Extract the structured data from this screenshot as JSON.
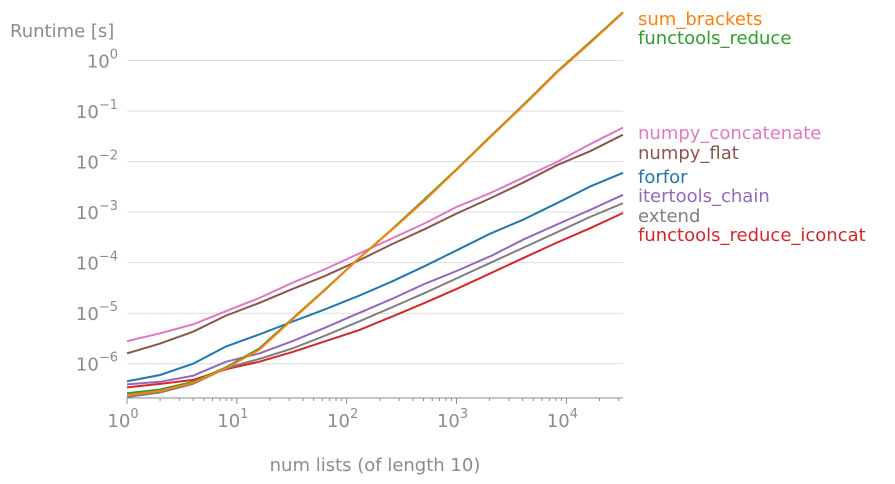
{
  "chart_data": {
    "type": "line",
    "title": "",
    "xlabel": "num lists (of length 10)",
    "ylabel": "Runtime [s]",
    "xscale": "log",
    "yscale": "log",
    "xlim": [
      1,
      32768
    ],
    "ylim": [
      2.1e-07,
      10
    ],
    "grid": "horizontal",
    "legend_placement": "right, at line ends",
    "x": [
      1,
      2,
      4,
      8,
      16,
      32,
      64,
      128,
      256,
      512,
      1024,
      2048,
      4096,
      8192,
      16384,
      32768
    ],
    "xticks": [
      {
        "value": 1,
        "base": "10",
        "exp": "0"
      },
      {
        "value": 10,
        "base": "10",
        "exp": "1"
      },
      {
        "value": 100,
        "base": "10",
        "exp": "2"
      },
      {
        "value": 1000,
        "base": "10",
        "exp": "3"
      },
      {
        "value": 10000,
        "base": "10",
        "exp": "4"
      }
    ],
    "yticks": [
      {
        "value": 1e-06,
        "base": "10",
        "exp": "−6"
      },
      {
        "value": 1e-05,
        "base": "10",
        "exp": "−5"
      },
      {
        "value": 0.0001,
        "base": "10",
        "exp": "−4"
      },
      {
        "value": 0.001,
        "base": "10",
        "exp": "−3"
      },
      {
        "value": 0.01,
        "base": "10",
        "exp": "−2"
      },
      {
        "value": 0.1,
        "base": "10",
        "exp": "−1"
      },
      {
        "value": 1,
        "base": "10",
        "exp": "0"
      }
    ],
    "series": [
      {
        "name": "sum_brackets",
        "color": "#ff7f0e",
        "values": [
          2.4e-07,
          2.9e-07,
          4.2e-07,
          8.2e-07,
          1.9e-06,
          7.5e-06,
          2.9e-05,
          0.00012,
          0.00044,
          0.0017,
          0.0072,
          0.031,
          0.13,
          0.58,
          2.2,
          8.8
        ]
      },
      {
        "name": "functools_reduce",
        "color": "#2ca02c",
        "values": [
          2.6e-07,
          3.1e-07,
          4.4e-07,
          8.5e-07,
          2e-06,
          7.8e-06,
          3e-05,
          0.00012,
          0.00045,
          0.0018,
          0.0074,
          0.032,
          0.135,
          0.6,
          2.3,
          9.0
        ]
      },
      {
        "name": "numpy_concatenate",
        "color": "#e377c2",
        "values": [
          2.8e-06,
          4e-06,
          6e-06,
          1.1e-05,
          2e-05,
          4e-05,
          7.5e-05,
          0.00015,
          0.0003,
          0.0006,
          0.0013,
          0.0024,
          0.0049,
          0.0098,
          0.022,
          0.047
        ]
      },
      {
        "name": "numpy_flat",
        "color": "#8c564b",
        "values": [
          1.6e-06,
          2.5e-06,
          4.3e-06,
          9e-06,
          1.6e-05,
          3e-05,
          5.5e-05,
          0.00011,
          0.00023,
          0.00046,
          0.00096,
          0.0019,
          0.0039,
          0.0085,
          0.016,
          0.034
        ]
      },
      {
        "name": "forfor",
        "color": "#1f77b4",
        "values": [
          4.5e-07,
          6e-07,
          1e-06,
          2.2e-06,
          3.8e-06,
          6.8e-06,
          1.2e-05,
          2.2e-05,
          4.2e-05,
          8.5e-05,
          0.00018,
          0.00038,
          0.00072,
          0.0015,
          0.0032,
          0.006
        ]
      },
      {
        "name": "itertools_chain",
        "color": "#9467bd",
        "values": [
          3.9e-07,
          4.4e-07,
          5.8e-07,
          1.1e-06,
          1.6e-06,
          2.8e-06,
          5.2e-06,
          1e-05,
          1.9e-05,
          3.8e-05,
          7e-05,
          0.000135,
          0.00029,
          0.00057,
          0.0011,
          0.0022
        ]
      },
      {
        "name": "extend",
        "color": "#7f7f7f",
        "values": [
          2.2e-07,
          2.7e-07,
          4e-07,
          8.2e-07,
          1.25e-06,
          2e-06,
          3.6e-06,
          6.8e-06,
          1.3e-05,
          2.5e-05,
          5e-05,
          0.0001,
          0.0002,
          0.0004,
          0.0008,
          0.0015
        ]
      },
      {
        "name": "functools_reduce_iconcat",
        "color": "#d62728",
        "values": [
          3.4e-07,
          4e-07,
          4.8e-07,
          7.8e-07,
          1.1e-06,
          1.7e-06,
          2.8e-06,
          4.6e-06,
          8.5e-06,
          1.6e-05,
          3.1e-05,
          6.2e-05,
          0.000125,
          0.00025,
          0.00048,
          0.00096
        ]
      }
    ],
    "legend": [
      {
        "name": "sum_brackets",
        "color": "#ff7f0e"
      },
      {
        "name": "functools_reduce",
        "color": "#2ca02c"
      },
      {
        "name": "numpy_concatenate",
        "color": "#e377c2"
      },
      {
        "name": "numpy_flat",
        "color": "#8c564b"
      },
      {
        "name": "forfor",
        "color": "#1f77b4"
      },
      {
        "name": "itertools_chain",
        "color": "#9467bd"
      },
      {
        "name": "extend",
        "color": "#7f7f7f"
      },
      {
        "name": "functools_reduce_iconcat",
        "color": "#d62728"
      }
    ]
  }
}
